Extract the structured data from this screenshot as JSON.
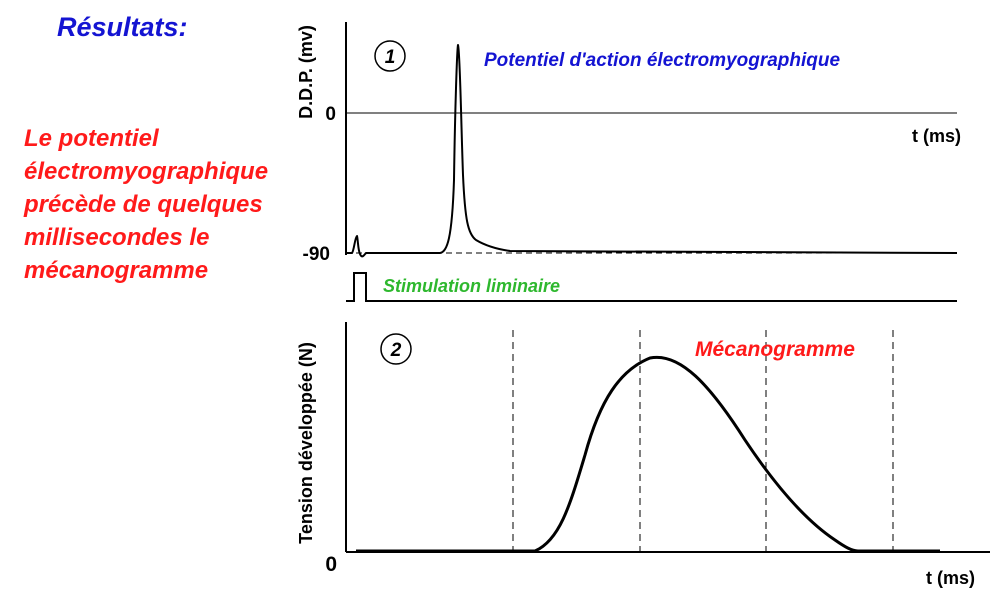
{
  "title": "Résultats:",
  "summary": {
    "lines": [
      "Le potentiel",
      "électromyographique",
      "précède de quelques",
      "millisecondes le",
      "mécanogramme"
    ]
  },
  "panel1": {
    "number": "1",
    "caption": "Potentiel d'action électromyographique",
    "y_label": "D.D.P. (mv)",
    "x_label": "t  (ms)",
    "tick_zero": "0",
    "tick_rest": "-90"
  },
  "stimulus": {
    "label": "Stimulation liminaire"
  },
  "panel2": {
    "number": "2",
    "caption": "Mécanogramme",
    "y_label": "Tension développée (N)",
    "x_label": "t  (ms)",
    "origin": "0"
  },
  "colors": {
    "title": "#1414d2",
    "summary": "#ff1a1a",
    "caption1": "#1414d2",
    "stimulus": "#2eb82e",
    "caption2": "#ff1a1a",
    "axes": "#000000"
  }
}
